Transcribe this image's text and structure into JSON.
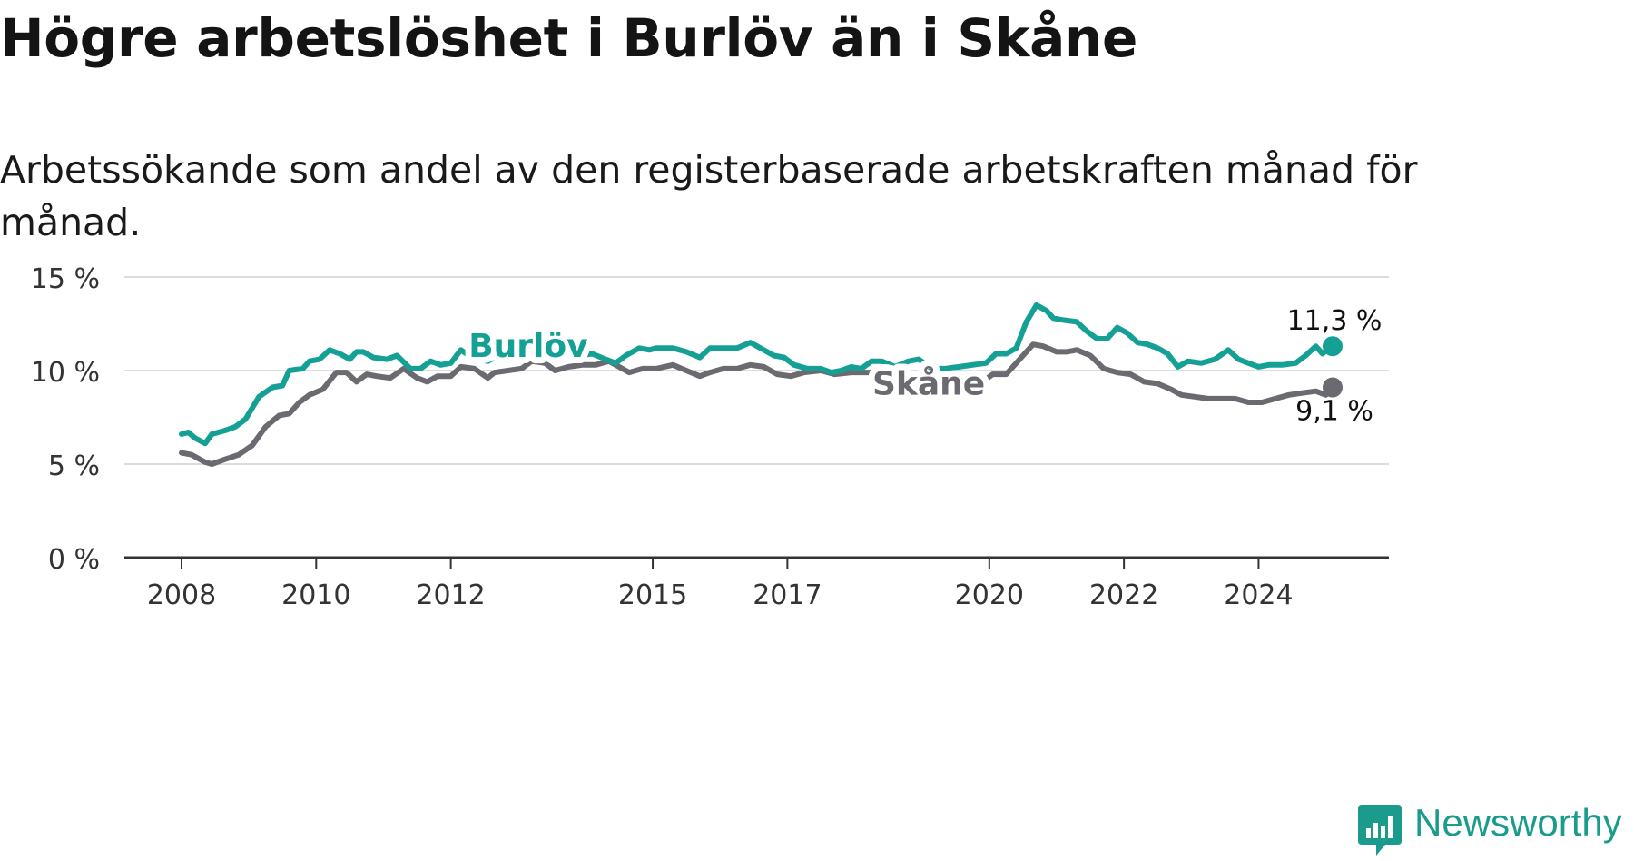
{
  "title": "Högre arbetslöshet i Burlöv än i Skåne",
  "subtitle": "Arbetssökande som andel av den registerbaserade arbetskraften månad för månad.",
  "brand": {
    "name": "Newsworthy",
    "icon": "newsworthy-logo-icon",
    "color": "#1a9b8b"
  },
  "chart_data": {
    "type": "line",
    "xlim": [
      2008.0,
      2025.1
    ],
    "ylim": [
      0,
      15
    ],
    "y_ticks": [
      {
        "value": 0,
        "label": "0 %"
      },
      {
        "value": 5,
        "label": "5 %"
      },
      {
        "value": 10,
        "label": "10 %"
      },
      {
        "value": 15,
        "label": "15 %"
      }
    ],
    "x_ticks": [
      {
        "value": 2008,
        "label": "2008"
      },
      {
        "value": 2010,
        "label": "2010"
      },
      {
        "value": 2012,
        "label": "2012"
      },
      {
        "value": 2015,
        "label": "2015"
      },
      {
        "value": 2017,
        "label": "2017"
      },
      {
        "value": 2020,
        "label": "2020"
      },
      {
        "value": 2022,
        "label": "2022"
      },
      {
        "value": 2024,
        "label": "2024"
      }
    ],
    "grid": "horizontal",
    "series": [
      {
        "name": "Burlöv",
        "color": "#15a095",
        "label": "Burlöv",
        "label_at": [
          2013.15,
          11.3
        ],
        "end_label": "11,3 %",
        "points": [
          [
            2008.0,
            6.6
          ],
          [
            2008.1,
            6.7
          ],
          [
            2008.2,
            6.4
          ],
          [
            2008.35,
            6.1
          ],
          [
            2008.45,
            6.6
          ],
          [
            2008.65,
            6.8
          ],
          [
            2008.8,
            7.0
          ],
          [
            2008.95,
            7.4
          ],
          [
            2009.15,
            8.6
          ],
          [
            2009.35,
            9.1
          ],
          [
            2009.5,
            9.2
          ],
          [
            2009.6,
            10.0
          ],
          [
            2009.8,
            10.1
          ],
          [
            2009.9,
            10.5
          ],
          [
            2010.05,
            10.6
          ],
          [
            2010.2,
            11.1
          ],
          [
            2010.35,
            10.9
          ],
          [
            2010.5,
            10.6
          ],
          [
            2010.6,
            11.0
          ],
          [
            2010.7,
            11.0
          ],
          [
            2010.85,
            10.7
          ],
          [
            2011.05,
            10.6
          ],
          [
            2011.2,
            10.8
          ],
          [
            2011.4,
            10.1
          ],
          [
            2011.55,
            10.1
          ],
          [
            2011.7,
            10.5
          ],
          [
            2011.85,
            10.3
          ],
          [
            2012.0,
            10.4
          ],
          [
            2012.15,
            11.1
          ],
          [
            2012.35,
            10.6
          ],
          [
            2012.55,
            10.5
          ],
          [
            2012.7,
            10.8
          ],
          [
            2012.9,
            10.9
          ],
          [
            2013.05,
            11.2
          ],
          [
            2013.3,
            11.1
          ],
          [
            2013.6,
            11.0
          ],
          [
            2013.9,
            10.8
          ],
          [
            2014.1,
            10.9
          ],
          [
            2014.3,
            10.6
          ],
          [
            2014.45,
            10.4
          ],
          [
            2014.6,
            10.8
          ],
          [
            2014.8,
            11.2
          ],
          [
            2014.95,
            11.1
          ],
          [
            2015.05,
            11.2
          ],
          [
            2015.3,
            11.2
          ],
          [
            2015.5,
            11.0
          ],
          [
            2015.7,
            10.7
          ],
          [
            2015.85,
            11.2
          ],
          [
            2016.05,
            11.2
          ],
          [
            2016.25,
            11.2
          ],
          [
            2016.45,
            11.5
          ],
          [
            2016.6,
            11.2
          ],
          [
            2016.8,
            10.8
          ],
          [
            2016.95,
            10.7
          ],
          [
            2017.1,
            10.3
          ],
          [
            2017.3,
            10.1
          ],
          [
            2017.5,
            10.1
          ],
          [
            2017.65,
            9.9
          ],
          [
            2017.8,
            10.0
          ],
          [
            2017.95,
            10.2
          ],
          [
            2018.1,
            10.1
          ],
          [
            2018.25,
            10.5
          ],
          [
            2018.4,
            10.5
          ],
          [
            2018.6,
            10.2
          ],
          [
            2018.8,
            10.5
          ],
          [
            2018.95,
            10.6
          ],
          [
            2019.15,
            10.1
          ],
          [
            2019.35,
            10.1
          ],
          [
            2019.55,
            10.2
          ],
          [
            2019.75,
            10.3
          ],
          [
            2019.95,
            10.4
          ],
          [
            2020.1,
            10.9
          ],
          [
            2020.25,
            10.9
          ],
          [
            2020.4,
            11.2
          ],
          [
            2020.55,
            12.6
          ],
          [
            2020.7,
            13.5
          ],
          [
            2020.85,
            13.2
          ],
          [
            2020.95,
            12.8
          ],
          [
            2021.1,
            12.7
          ],
          [
            2021.3,
            12.6
          ],
          [
            2021.45,
            12.1
          ],
          [
            2021.6,
            11.7
          ],
          [
            2021.75,
            11.7
          ],
          [
            2021.9,
            12.3
          ],
          [
            2022.05,
            12.0
          ],
          [
            2022.2,
            11.5
          ],
          [
            2022.35,
            11.4
          ],
          [
            2022.5,
            11.2
          ],
          [
            2022.65,
            10.9
          ],
          [
            2022.8,
            10.2
          ],
          [
            2022.95,
            10.5
          ],
          [
            2023.15,
            10.4
          ],
          [
            2023.35,
            10.6
          ],
          [
            2023.55,
            11.1
          ],
          [
            2023.7,
            10.6
          ],
          [
            2023.85,
            10.4
          ],
          [
            2024.0,
            10.2
          ],
          [
            2024.15,
            10.3
          ],
          [
            2024.35,
            10.3
          ],
          [
            2024.55,
            10.4
          ],
          [
            2024.7,
            10.8
          ],
          [
            2024.85,
            11.3
          ],
          [
            2024.95,
            10.9
          ],
          [
            2025.05,
            11.2
          ],
          [
            2025.1,
            11.3
          ]
        ]
      },
      {
        "name": "Skåne",
        "color": "#6b6a70",
        "label": "Skåne",
        "label_at": [
          2019.1,
          9.3
        ],
        "end_label": "9,1 %",
        "points": [
          [
            2008.0,
            5.6
          ],
          [
            2008.15,
            5.5
          ],
          [
            2008.35,
            5.1
          ],
          [
            2008.45,
            5.0
          ],
          [
            2008.6,
            5.2
          ],
          [
            2008.85,
            5.5
          ],
          [
            2009.05,
            6.0
          ],
          [
            2009.25,
            7.0
          ],
          [
            2009.45,
            7.6
          ],
          [
            2009.6,
            7.7
          ],
          [
            2009.75,
            8.3
          ],
          [
            2009.9,
            8.7
          ],
          [
            2010.1,
            9.0
          ],
          [
            2010.3,
            9.9
          ],
          [
            2010.45,
            9.9
          ],
          [
            2010.6,
            9.4
          ],
          [
            2010.75,
            9.8
          ],
          [
            2010.9,
            9.7
          ],
          [
            2011.1,
            9.6
          ],
          [
            2011.3,
            10.1
          ],
          [
            2011.5,
            9.6
          ],
          [
            2011.65,
            9.4
          ],
          [
            2011.8,
            9.7
          ],
          [
            2012.0,
            9.7
          ],
          [
            2012.15,
            10.2
          ],
          [
            2012.35,
            10.1
          ],
          [
            2012.55,
            9.6
          ],
          [
            2012.65,
            9.9
          ],
          [
            2012.85,
            10.0
          ],
          [
            2013.05,
            10.1
          ],
          [
            2013.2,
            10.5
          ],
          [
            2013.4,
            10.4
          ],
          [
            2013.55,
            10.0
          ],
          [
            2013.75,
            10.2
          ],
          [
            2013.95,
            10.3
          ],
          [
            2014.15,
            10.3
          ],
          [
            2014.35,
            10.5
          ],
          [
            2014.5,
            10.2
          ],
          [
            2014.65,
            9.9
          ],
          [
            2014.85,
            10.1
          ],
          [
            2015.05,
            10.1
          ],
          [
            2015.3,
            10.3
          ],
          [
            2015.5,
            10.0
          ],
          [
            2015.7,
            9.7
          ],
          [
            2015.85,
            9.9
          ],
          [
            2016.05,
            10.1
          ],
          [
            2016.25,
            10.1
          ],
          [
            2016.45,
            10.3
          ],
          [
            2016.65,
            10.2
          ],
          [
            2016.85,
            9.8
          ],
          [
            2017.05,
            9.7
          ],
          [
            2017.25,
            9.9
          ],
          [
            2017.5,
            10.0
          ],
          [
            2017.7,
            9.8
          ],
          [
            2017.95,
            9.9
          ],
          [
            2018.15,
            9.9
          ],
          [
            2018.35,
            9.9
          ],
          [
            2018.55,
            9.7
          ],
          [
            2018.75,
            9.4
          ],
          [
            2019.4,
            9.4
          ],
          [
            2019.65,
            9.3
          ],
          [
            2019.9,
            9.4
          ],
          [
            2020.05,
            9.8
          ],
          [
            2020.25,
            9.8
          ],
          [
            2020.45,
            10.6
          ],
          [
            2020.65,
            11.4
          ],
          [
            2020.8,
            11.3
          ],
          [
            2021.0,
            11.0
          ],
          [
            2021.15,
            11.0
          ],
          [
            2021.3,
            11.1
          ],
          [
            2021.5,
            10.8
          ],
          [
            2021.7,
            10.1
          ],
          [
            2021.9,
            9.9
          ],
          [
            2022.1,
            9.8
          ],
          [
            2022.3,
            9.4
          ],
          [
            2022.5,
            9.3
          ],
          [
            2022.7,
            9.0
          ],
          [
            2022.85,
            8.7
          ],
          [
            2023.05,
            8.6
          ],
          [
            2023.25,
            8.5
          ],
          [
            2023.45,
            8.5
          ],
          [
            2023.65,
            8.5
          ],
          [
            2023.85,
            8.3
          ],
          [
            2024.05,
            8.3
          ],
          [
            2024.25,
            8.5
          ],
          [
            2024.45,
            8.7
          ],
          [
            2024.65,
            8.8
          ],
          [
            2024.85,
            8.9
          ],
          [
            2025.0,
            8.7
          ],
          [
            2025.1,
            9.1
          ]
        ]
      }
    ]
  }
}
